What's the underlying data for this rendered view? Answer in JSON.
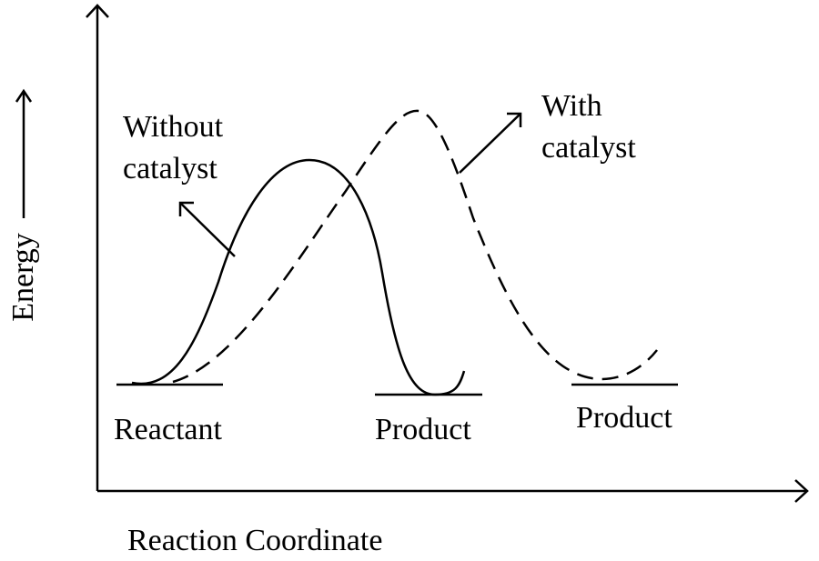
{
  "axes": {
    "y_label": "Energy",
    "x_label": "Reaction Coordinate"
  },
  "curves": [
    {
      "label_lines": [
        "Without",
        "catalyst"
      ]
    },
    {
      "label_lines": [
        "With",
        "catalyst"
      ]
    }
  ],
  "levels": [
    "Reactant",
    "Product",
    "Product"
  ]
}
